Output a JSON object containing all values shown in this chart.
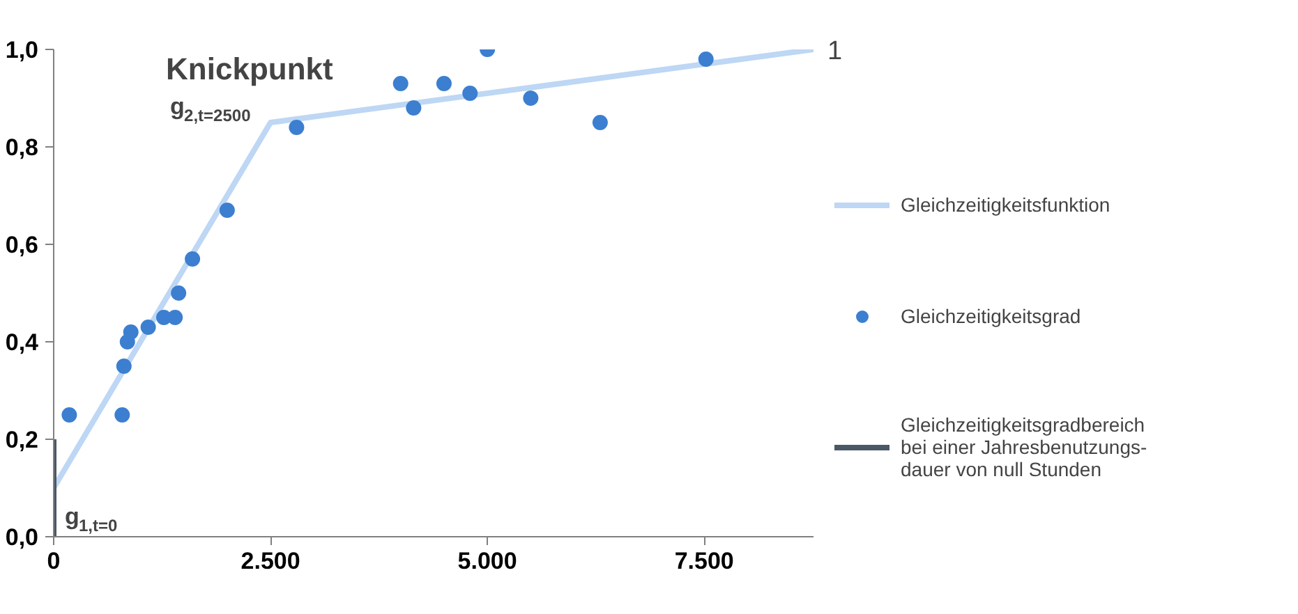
{
  "chart_data": {
    "type": "scatter",
    "xlim": [
      0,
      8760
    ],
    "ylim": [
      0,
      1.0
    ],
    "xticks": [
      0,
      {
        "value": 2500,
        "label": "2.500"
      },
      {
        "value": 5000,
        "label": "5.000"
      },
      {
        "value": 7500,
        "label": "7.500"
      }
    ],
    "yticks": [
      {
        "value": 0,
        "label": "0,0"
      },
      {
        "value": 0.2,
        "label": "0,2"
      },
      {
        "value": 0.4,
        "label": "0,4"
      },
      {
        "value": 0.6,
        "label": "0,6"
      },
      {
        "value": 0.8,
        "label": "0,8"
      },
      {
        "value": 1.0,
        "label": "1,0"
      }
    ],
    "grid": false,
    "legend": "right",
    "marker": "circle",
    "line_style": "solid",
    "series": [
      {
        "name": "Gleichzeitigkeitsfunktion",
        "type": "line",
        "marker": "none",
        "color": "#bdd7f4",
        "x": [
          0,
          2500,
          8760
        ],
        "values": [
          0.1,
          0.85,
          1.0
        ]
      },
      {
        "name": "Gleichzeitigkeitsgrad",
        "color": "#3c7fd0",
        "x": [
          180,
          790,
          810,
          850,
          890,
          1090,
          1270,
          1400,
          1440,
          1600,
          2000,
          2800,
          4000,
          4150,
          4500,
          4800,
          5000,
          5500,
          6300,
          7520
        ],
        "values": [
          0.25,
          0.25,
          0.35,
          0.4,
          0.42,
          0.43,
          0.45,
          0.45,
          0.5,
          0.57,
          0.67,
          0.84,
          0.93,
          0.88,
          0.93,
          0.91,
          1.0,
          0.9,
          0.85,
          0.98
        ]
      },
      {
        "name": "Gleichzeitigkeitsgradbereich\nbei einer Jahresbenutzungs-\ndauer von null Stunden",
        "type": "line",
        "marker": "none",
        "color": "#4a5866",
        "x": [
          0,
          0
        ],
        "values": [
          0,
          0.2
        ]
      }
    ],
    "annotations": [
      {
        "text": "Knickpunkt",
        "x": 2500,
        "y": 0.85
      },
      {
        "text": "g$_{2,t=2500}$",
        "x": 2500,
        "y": 0.85
      },
      {
        "text": "g$_{1,t=0}$",
        "x": 0,
        "y": 0.1
      },
      {
        "text": "1",
        "x": 8760,
        "y": 1.0
      }
    ]
  }
}
